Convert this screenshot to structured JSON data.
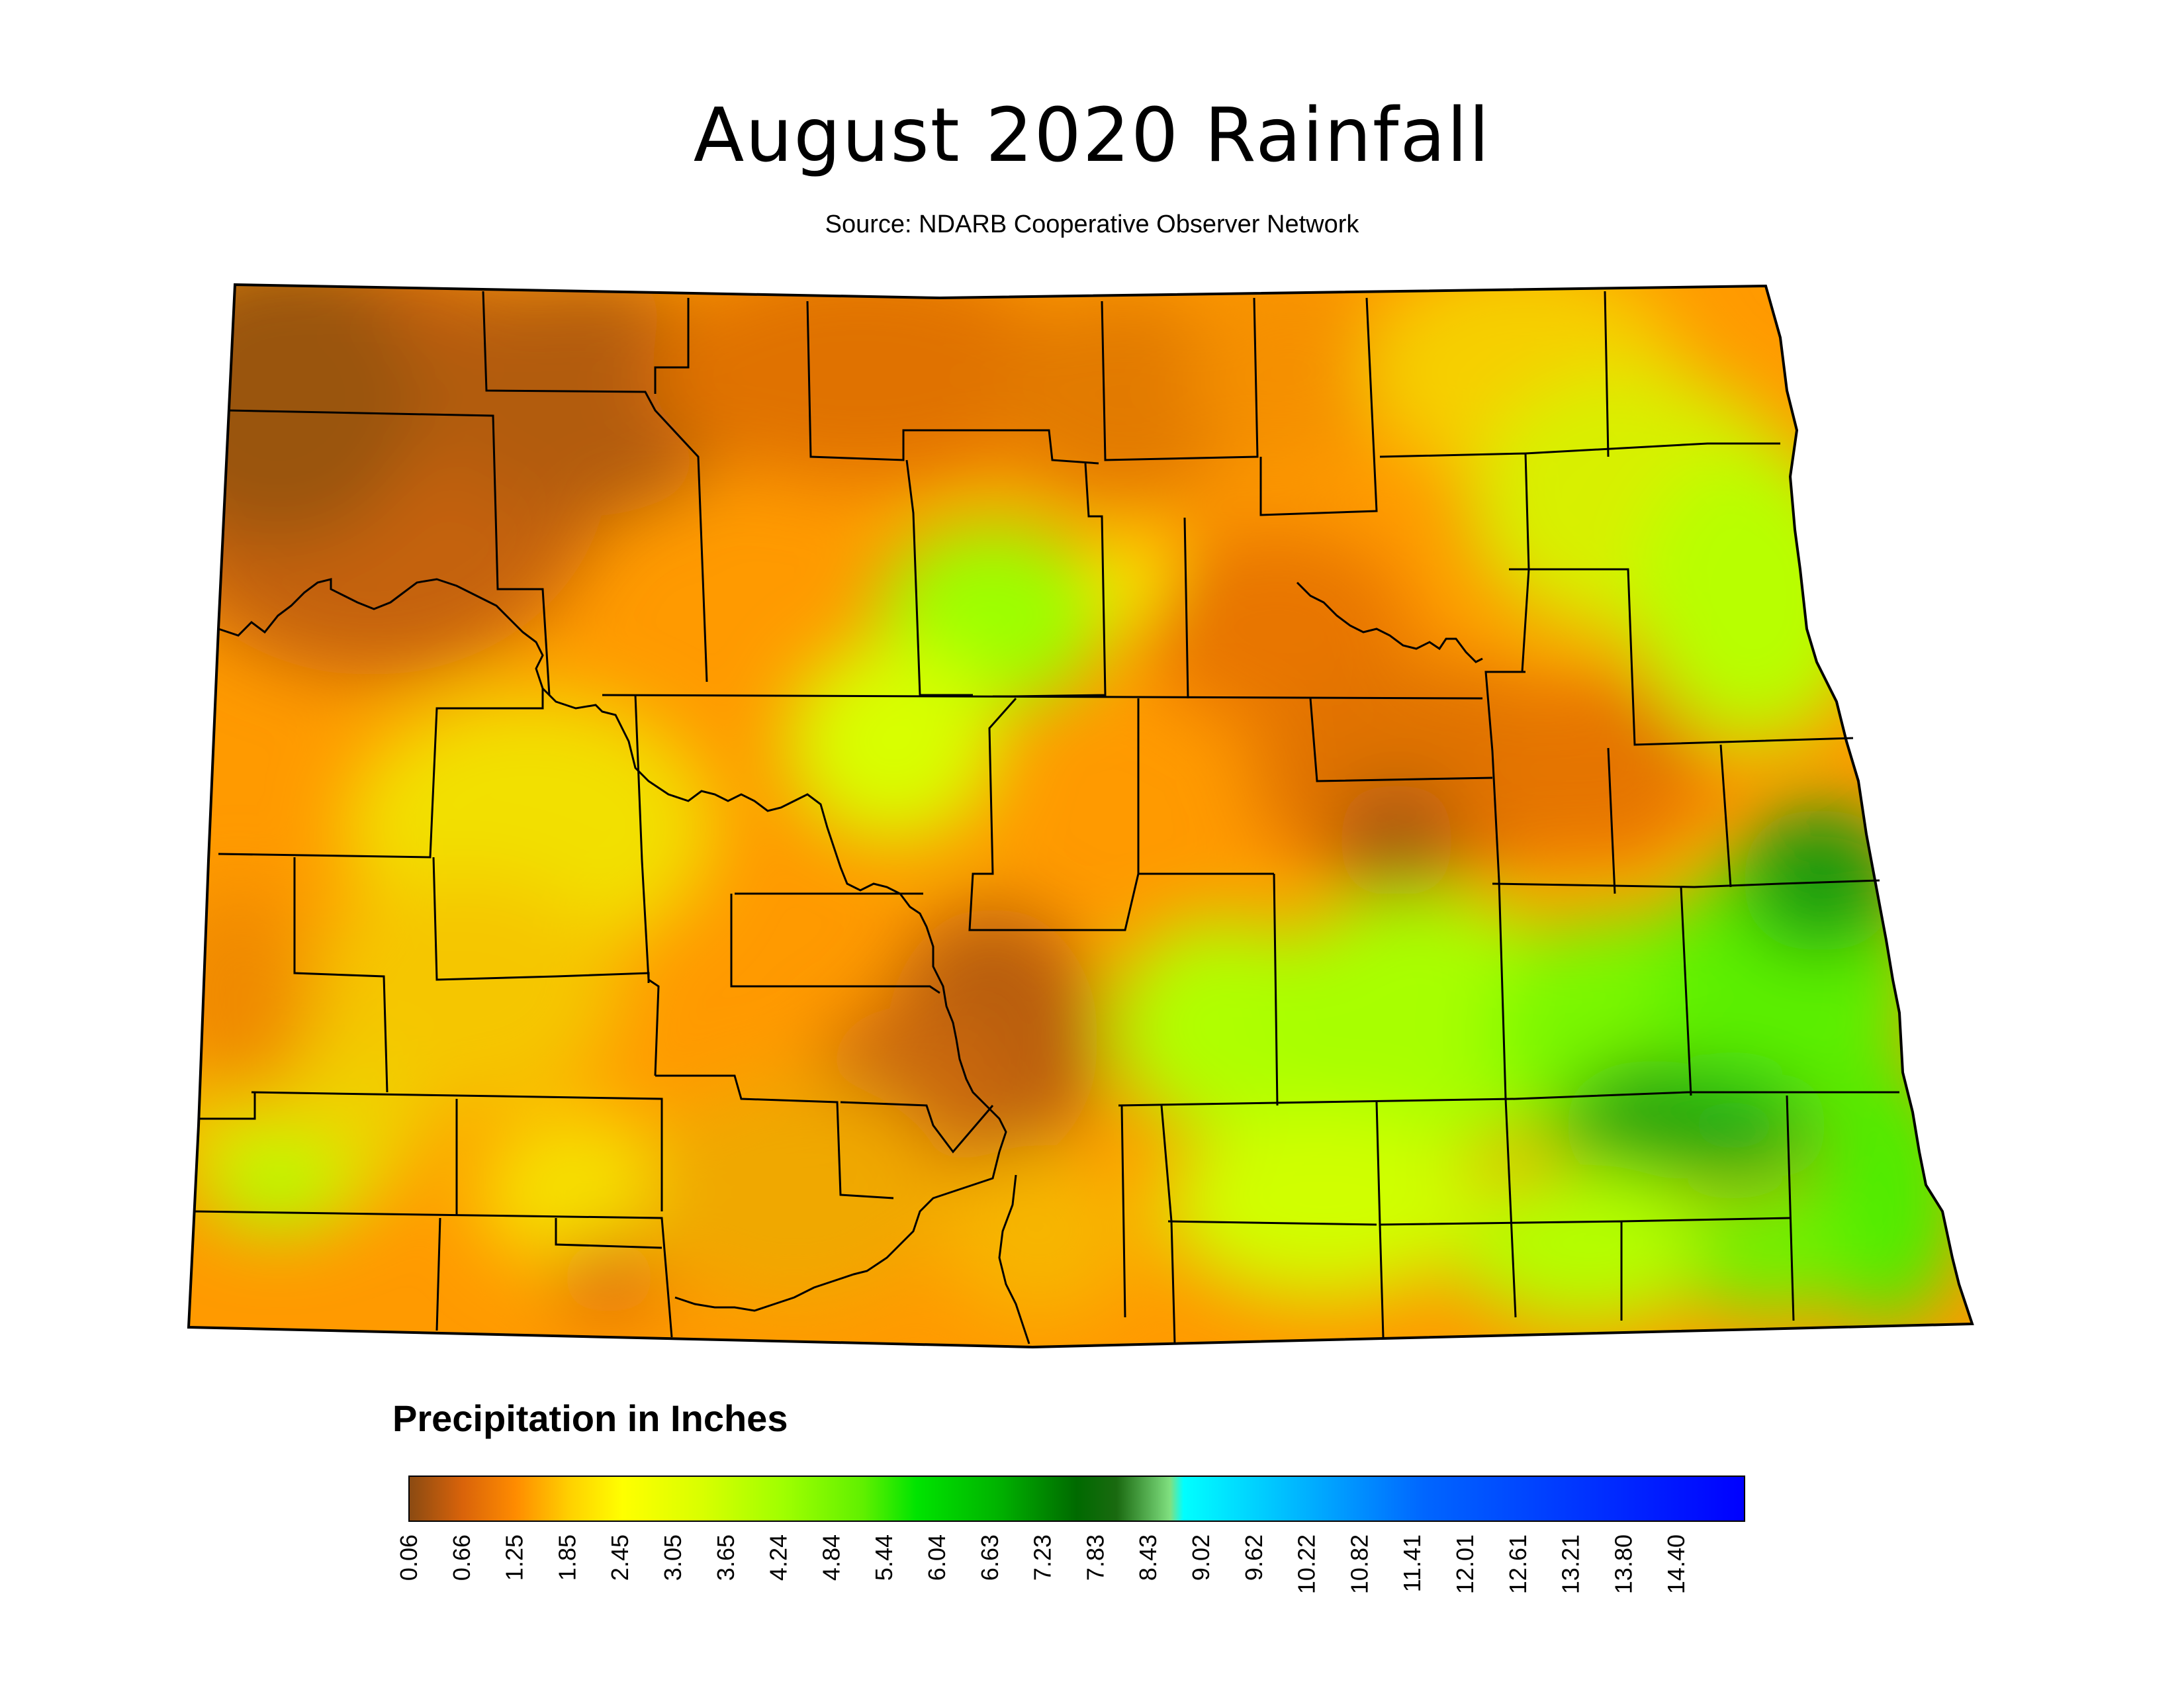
{
  "title": "August 2020 Rainfall",
  "subtitle": "Source: NDARB Cooperative Observer Network",
  "legend": {
    "title": "Precipitation in Inches",
    "ticks": [
      "0.06",
      "0.66",
      "1.25",
      "1.85",
      "2.45",
      "3.05",
      "3.65",
      "4.24",
      "4.84",
      "5.44",
      "6.04",
      "6.63",
      "7.23",
      "7.83",
      "8.43",
      "9.02",
      "9.62",
      "10.22",
      "10.82",
      "11.41",
      "12.01",
      "12.61",
      "13.21",
      "13.80",
      "14.40"
    ],
    "colors": {
      "0.06": "#8a4a12",
      "0.66": "#d9630a",
      "1.25": "#ff8c00",
      "1.85": "#ffd000",
      "2.45": "#ffff00",
      "3.05": "#d8ff00",
      "3.65": "#b0ff00",
      "4.24": "#88ff00",
      "4.84": "#40f000",
      "5.44": "#00e000",
      "6.04": "#00b400",
      "6.63": "#008800",
      "7.23": "#006a00",
      "7.83": "#80e080",
      "8.43": "#00ffff",
      "9.62": "#00aaff",
      "10.82": "#0066ff",
      "12.61": "#0033ff",
      "14.40": "#0000ff"
    }
  }
}
